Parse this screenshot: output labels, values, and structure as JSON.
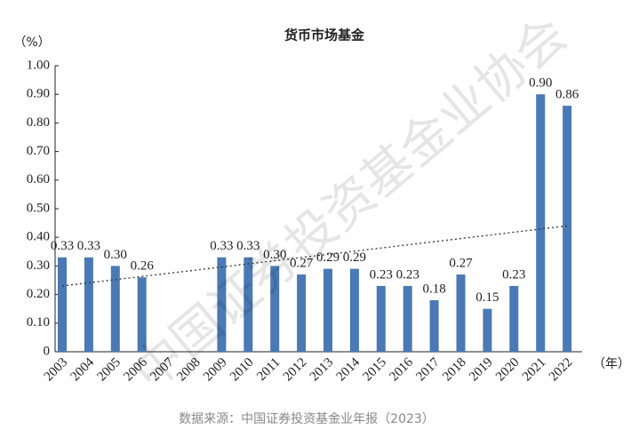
{
  "chart_data": {
    "type": "bar",
    "title": "货币市场基金",
    "y_unit": "（%）",
    "x_unit": "（年）",
    "source": "数据来源：中国证券投资基金业年报（2023）",
    "watermark": "中国证券投资基金业协会",
    "categories": [
      "2003",
      "2004",
      "2005",
      "2006",
      "2007",
      "2008",
      "2009",
      "2010",
      "2011",
      "2012",
      "2013",
      "2014",
      "2015",
      "2016",
      "2017",
      "2018",
      "2019",
      "2020",
      "2021",
      "2022"
    ],
    "values": [
      0.33,
      0.33,
      0.3,
      0.26,
      null,
      null,
      0.33,
      0.33,
      0.3,
      0.27,
      0.29,
      0.29,
      0.23,
      0.23,
      0.18,
      0.27,
      0.15,
      0.23,
      0.9,
      0.86
    ],
    "value_labels": [
      "0.33",
      "0.33",
      "0.30",
      "0.26",
      null,
      null,
      "0.33",
      "0.33",
      "0.30",
      "0.27",
      "0.29",
      "0.29",
      "0.23",
      "0.23",
      "0.18",
      "0.27",
      "0.15",
      "0.23",
      "0.90",
      "0.86"
    ],
    "color": "#4a79b5",
    "trend": {
      "start": 0.23,
      "end": 0.44
    },
    "ylim": [
      0,
      1.0
    ],
    "yticks": [
      0,
      {
        "value": 0.1,
        "label": "0.10"
      },
      {
        "value": 0.2,
        "label": "0.20"
      },
      {
        "value": 0.3,
        "label": "0.30"
      },
      {
        "value": 0.4,
        "label": "0.40"
      },
      {
        "value": 0.5,
        "label": "0.50"
      },
      {
        "value": 0.6,
        "label": "0.60"
      },
      {
        "value": 0.7,
        "label": "0.70"
      },
      {
        "value": 0.8,
        "label": "0.80"
      },
      {
        "value": 0.9,
        "label": "0.90"
      },
      {
        "value": 1.0,
        "label": "1.00"
      }
    ]
  }
}
